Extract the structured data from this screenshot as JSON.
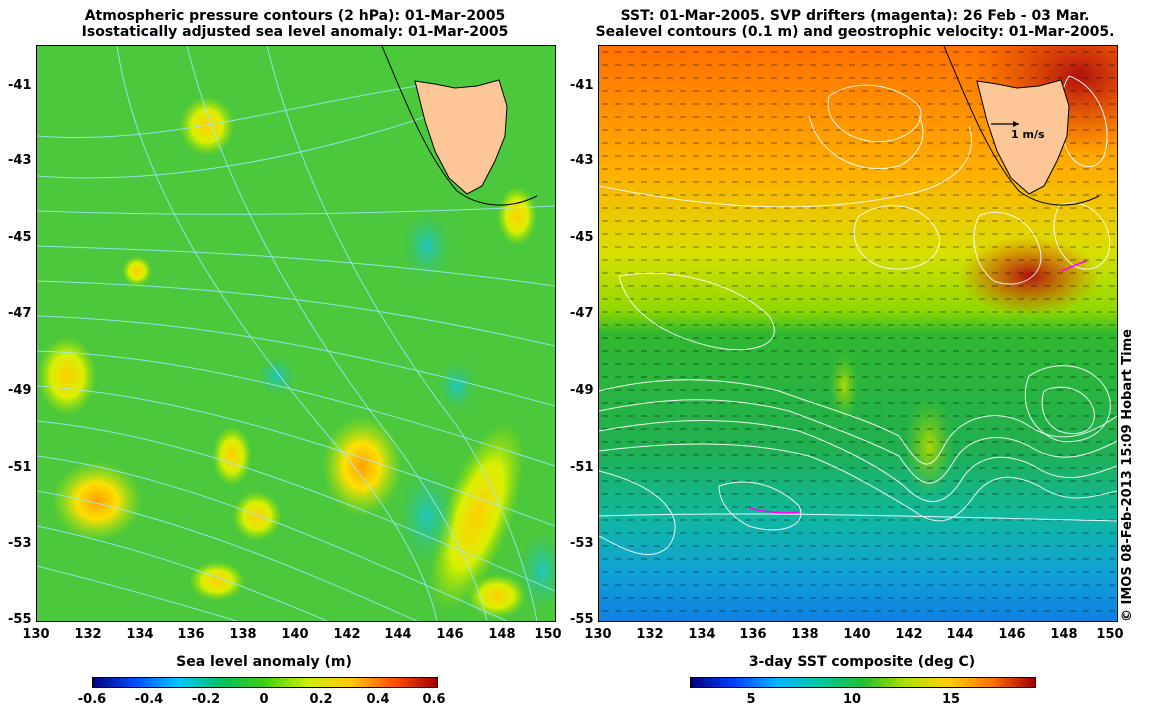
{
  "left_map": {
    "title_line1": "Atmospheric pressure contours (2 hPa): 01-Mar-2005",
    "title_line2": "Isostatically adjusted sea level anomaly: 01-Mar-2005",
    "colorbar_title": "Sea level anomaly (m)",
    "colorbar_ticks": [
      "-0.6",
      "-0.4",
      "-0.2",
      "0",
      "0.2",
      "0.4",
      "0.6"
    ]
  },
  "right_map": {
    "title_line1": "SST: 01-Mar-2005. SVP drifters (magenta): 26 Feb - 03 Mar.",
    "title_line2": "Sealevel contours (0.1 m) and geostrophic velocity: 01-Mar-2005.",
    "scale_label": "1 m/s",
    "colorbar_title": "3-day SST composite (deg C)",
    "colorbar_ticks": [
      "5",
      "10",
      "15"
    ]
  },
  "lat_ticks": [
    "-41",
    "-43",
    "-45",
    "-47",
    "-49",
    "-51",
    "-53",
    "-55"
  ],
  "lon_ticks": [
    "130",
    "132",
    "134",
    "136",
    "138",
    "140",
    "142",
    "144",
    "146",
    "148",
    "150"
  ],
  "credit": "© IMOS 08-Feb-2013 15:09 Hobart Time",
  "colors": {
    "land": "#fcc696",
    "sla_gradient": [
      "#00007f",
      "#0050ff",
      "#00c8ff",
      "#00c060",
      "#40d010",
      "#ccf000",
      "#ffc800",
      "#ff5000",
      "#a00000"
    ],
    "sst_gradient": [
      "#00007f",
      "#0040ff",
      "#00b4ff",
      "#00c8a0",
      "#20c030",
      "#b0e000",
      "#ffd000",
      "#ff7000",
      "#a00000"
    ]
  }
}
